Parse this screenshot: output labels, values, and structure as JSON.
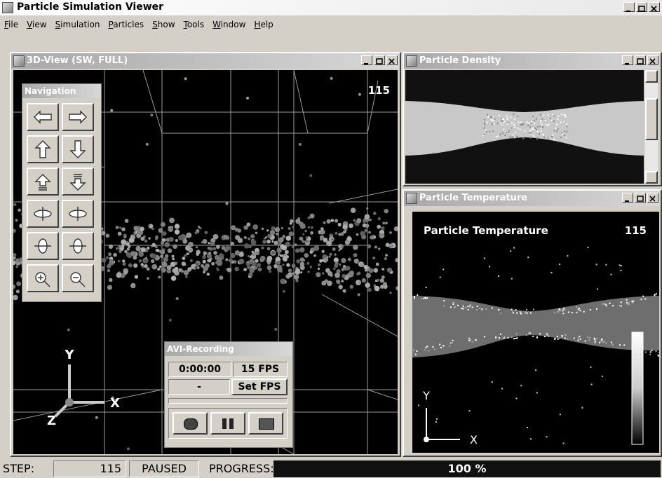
{
  "app": {
    "title": "Particle Simulation Viewer"
  },
  "menu": [
    "File",
    "View",
    "Simulation",
    "Particles",
    "Show",
    "Tools",
    "Window",
    "Help"
  ],
  "view3d": {
    "title": "3D-View (SW, FULL)",
    "step": "115",
    "axes": {
      "x": "X",
      "y": "Y",
      "z": "Z"
    }
  },
  "navigation": {
    "title": "Navigation"
  },
  "recording": {
    "title": "AVI-Recording",
    "time": "0:00:00",
    "fps": "15 FPS",
    "status": "-",
    "button": "Set FPS"
  },
  "density": {
    "title": "Particle Density"
  },
  "temperature": {
    "window_title": "Particle Temperature",
    "label": "Particle Temperature",
    "step": "115",
    "axes": {
      "x": "X",
      "y": "Y"
    }
  },
  "status": {
    "step_label": "STEP:",
    "step": "115",
    "state": "PAUSED",
    "progress_label": "PROGRESS:",
    "progress": "100 %"
  }
}
